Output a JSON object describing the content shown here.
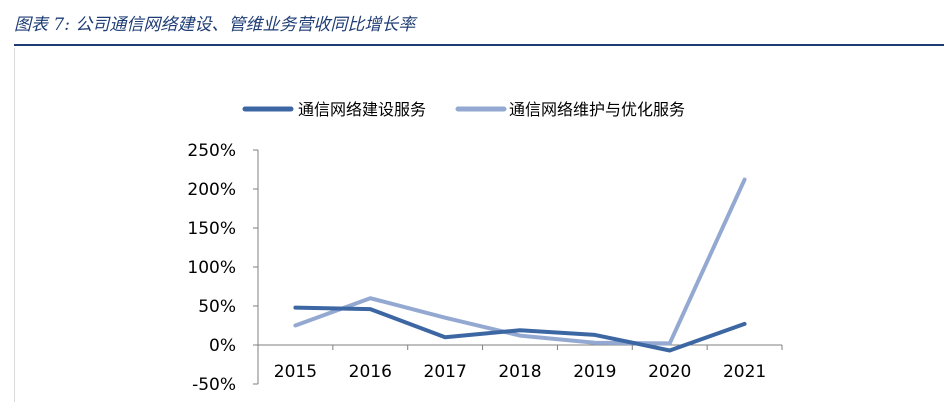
{
  "figure_title": "图表 7:  公司通信网络建设、管维业务营收同比增长率",
  "colors": {
    "title": "#1f3d75",
    "series_1": "#3d67a3",
    "series_2": "#94a9d2",
    "axis": "#7f7f7f"
  },
  "chart_data": {
    "type": "line",
    "title": "",
    "xlabel": "",
    "ylabel": "",
    "categories": [
      "2015",
      "2016",
      "2017",
      "2018",
      "2019",
      "2020",
      "2021"
    ],
    "series": [
      {
        "name": "通信网络建设服务",
        "values": [
          48,
          46,
          10,
          19,
          13,
          -7,
          27
        ]
      },
      {
        "name": "通信网络维护与优化服务",
        "values": [
          25,
          60,
          35,
          12,
          3,
          2,
          212
        ]
      }
    ],
    "ylim": [
      -50,
      250
    ],
    "yticks": [
      -50,
      0,
      50,
      100,
      150,
      200,
      250
    ],
    "ytick_labels": [
      "-50%",
      "0%",
      "50%",
      "100%",
      "150%",
      "200%",
      "250%"
    ],
    "legend_position": "top",
    "grid": false
  }
}
